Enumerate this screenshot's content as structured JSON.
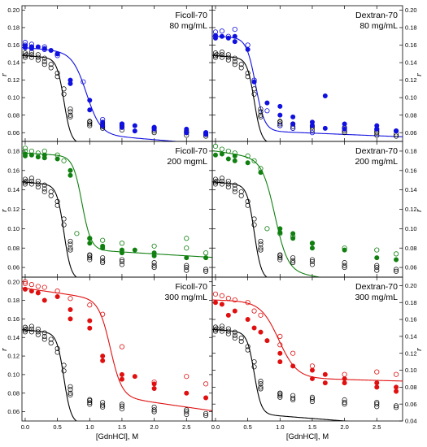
{
  "chart_data": {
    "type": "scatter",
    "xlabel": "[GdnHCl], M",
    "ylabel": "r",
    "xlim": [
      -0.05,
      2.9
    ],
    "xticks": [
      0.0,
      0.5,
      1.0,
      1.5,
      2.0,
      2.5
    ],
    "xtick_labels": [
      "0.0",
      "0.5",
      "1.0",
      "1.5",
      "2.0",
      "2.5"
    ],
    "grid": false,
    "colors": {
      "reference": "#000000",
      "blue": "#1010e0",
      "green": "#108010",
      "red": "#e01010"
    },
    "reference": {
      "curve": {
        "top": 0.148,
        "bottom": 0.052,
        "mid": 0.6,
        "width": 0.055,
        "slope": -0.006
      },
      "points": [
        [
          0.0,
          0.148
        ],
        [
          0.0,
          0.151
        ],
        [
          0.0,
          0.146
        ],
        [
          0.02,
          0.149
        ],
        [
          0.1,
          0.149
        ],
        [
          0.1,
          0.146
        ],
        [
          0.1,
          0.152
        ],
        [
          0.2,
          0.146
        ],
        [
          0.2,
          0.143
        ],
        [
          0.2,
          0.149
        ],
        [
          0.3,
          0.141
        ],
        [
          0.3,
          0.145
        ],
        [
          0.3,
          0.138
        ],
        [
          0.4,
          0.138
        ],
        [
          0.4,
          0.134
        ],
        [
          0.5,
          0.128
        ],
        [
          0.5,
          0.124
        ],
        [
          0.6,
          0.11
        ],
        [
          0.6,
          0.104
        ],
        [
          0.7,
          0.087
        ],
        [
          0.7,
          0.08
        ],
        [
          0.7,
          0.084
        ],
        [
          0.7,
          0.078
        ],
        [
          1.0,
          0.073
        ],
        [
          1.0,
          0.07
        ],
        [
          1.0,
          0.068
        ],
        [
          1.0,
          0.072
        ],
        [
          1.2,
          0.067
        ],
        [
          1.2,
          0.07
        ],
        [
          1.2,
          0.065
        ],
        [
          1.5,
          0.066
        ],
        [
          1.5,
          0.063
        ],
        [
          1.5,
          0.068
        ],
        [
          2.0,
          0.062
        ],
        [
          2.0,
          0.065
        ],
        [
          2.0,
          0.06
        ],
        [
          2.5,
          0.06
        ],
        [
          2.5,
          0.057
        ],
        [
          2.5,
          0.062
        ],
        [
          2.8,
          0.058
        ],
        [
          2.8,
          0.056
        ]
      ]
    },
    "panels": [
      {
        "name": "ficoll-70-80",
        "line1": "Ficoll-70",
        "line2": "80 mg/mL",
        "col": "left",
        "row": 0,
        "ylim": [
          0.05,
          0.205
        ],
        "yticks": [
          0.06,
          0.08,
          0.1,
          0.12,
          0.14,
          0.16,
          0.18,
          0.2
        ],
        "ytick_labels": [
          "0.06",
          "0.08",
          "0.10",
          "0.12",
          "0.14",
          "0.16",
          "0.18",
          "0.20"
        ],
        "color": "#1010e0",
        "curve": {
          "top": 0.157,
          "bottom": 0.064,
          "mid": 0.95,
          "width": 0.11,
          "slope": -0.006
        },
        "open": [
          [
            0.0,
            0.16
          ],
          [
            0.0,
            0.163
          ],
          [
            0.1,
            0.161
          ],
          [
            0.1,
            0.158
          ],
          [
            0.3,
            0.158
          ],
          [
            0.3,
            0.155
          ],
          [
            0.5,
            0.15
          ],
          [
            0.5,
            0.148
          ],
          [
            0.9,
            0.118
          ],
          [
            1.2,
            0.075
          ],
          [
            1.5,
            0.07
          ],
          [
            2.0,
            0.066
          ],
          [
            2.5,
            0.06
          ],
          [
            2.8,
            0.06
          ]
        ],
        "filled": [
          [
            0.0,
            0.157
          ],
          [
            0.0,
            0.159
          ],
          [
            0.1,
            0.158
          ],
          [
            0.1,
            0.156
          ],
          [
            0.2,
            0.158
          ],
          [
            0.3,
            0.156
          ],
          [
            0.4,
            0.154
          ],
          [
            0.5,
            0.15
          ],
          [
            0.7,
            0.12
          ],
          [
            0.7,
            0.116
          ],
          [
            1.0,
            0.097
          ],
          [
            1.0,
            0.086
          ],
          [
            1.2,
            0.072
          ],
          [
            1.2,
            0.068
          ],
          [
            1.5,
            0.066
          ],
          [
            1.5,
            0.07
          ],
          [
            1.7,
            0.068
          ],
          [
            1.7,
            0.062
          ],
          [
            2.0,
            0.066
          ],
          [
            2.0,
            0.064
          ],
          [
            2.5,
            0.064
          ],
          [
            2.5,
            0.06
          ],
          [
            2.8,
            0.06
          ],
          [
            2.8,
            0.058
          ]
        ]
      },
      {
        "name": "dextran-70-80",
        "line1": "Dextran-70",
        "line2": "80 mg/mL",
        "col": "right",
        "row": 0,
        "ylim": [
          0.05,
          0.205
        ],
        "yticks": [
          0.06,
          0.08,
          0.1,
          0.12,
          0.14,
          0.16,
          0.18,
          0.2
        ],
        "ytick_labels": [
          "0.06",
          "0.08",
          "0.10",
          "0.12",
          "0.14",
          "0.16",
          "0.18",
          "0.20"
        ],
        "color": "#1010e0",
        "curve": {
          "top": 0.17,
          "bottom": 0.064,
          "mid": 0.62,
          "width": 0.07,
          "slope": -0.003
        },
        "open": [
          [
            0.0,
            0.175
          ],
          [
            0.1,
            0.176
          ],
          [
            0.2,
            0.17
          ],
          [
            0.3,
            0.178
          ],
          [
            0.5,
            0.16
          ],
          [
            0.6,
            0.12
          ],
          [
            0.8,
            0.085
          ],
          [
            1.0,
            0.068
          ],
          [
            1.2,
            0.065
          ],
          [
            1.5,
            0.06
          ],
          [
            2.0,
            0.066
          ],
          [
            2.5,
            0.064
          ],
          [
            2.8,
            0.062
          ]
        ],
        "filled": [
          [
            0.0,
            0.168
          ],
          [
            0.0,
            0.171
          ],
          [
            0.1,
            0.17
          ],
          [
            0.2,
            0.168
          ],
          [
            0.3,
            0.164
          ],
          [
            0.3,
            0.17
          ],
          [
            0.5,
            0.155
          ],
          [
            0.6,
            0.118
          ],
          [
            0.8,
            0.094
          ],
          [
            1.0,
            0.09
          ],
          [
            1.0,
            0.08
          ],
          [
            1.2,
            0.078
          ],
          [
            1.2,
            0.07
          ],
          [
            1.5,
            0.072
          ],
          [
            1.5,
            0.068
          ],
          [
            1.7,
            0.102
          ],
          [
            1.7,
            0.065
          ],
          [
            2.0,
            0.07
          ],
          [
            2.0,
            0.064
          ],
          [
            2.5,
            0.064
          ],
          [
            2.5,
            0.068
          ],
          [
            2.8,
            0.062
          ]
        ]
      },
      {
        "name": "ficoll-70-200",
        "line1": "Ficoll-70",
        "line2": "200 mgmL",
        "col": "left",
        "row": 1,
        "ylim": [
          0.05,
          0.19
        ],
        "yticks": [
          0.06,
          0.08,
          0.1,
          0.12,
          0.14,
          0.16,
          0.18
        ],
        "ytick_labels": [
          "0.06",
          "0.08",
          "0.10",
          "0.12",
          "0.14",
          "0.16",
          "0.18"
        ],
        "color": "#108010",
        "curve": {
          "top": 0.178,
          "bottom": 0.082,
          "mid": 0.88,
          "width": 0.07,
          "slope": -0.004
        },
        "open": [
          [
            0.0,
            0.18
          ],
          [
            0.0,
            0.183
          ],
          [
            0.1,
            0.18
          ],
          [
            0.2,
            0.178
          ],
          [
            0.3,
            0.18
          ],
          [
            0.5,
            0.176
          ],
          [
            0.6,
            0.17
          ],
          [
            0.8,
            0.095
          ],
          [
            1.0,
            0.09
          ],
          [
            1.2,
            0.088
          ],
          [
            1.5,
            0.085
          ],
          [
            2.0,
            0.082
          ],
          [
            2.5,
            0.08
          ],
          [
            2.5,
            0.09
          ],
          [
            2.8,
            0.075
          ]
        ],
        "filled": [
          [
            0.0,
            0.177
          ],
          [
            0.0,
            0.175
          ],
          [
            0.1,
            0.176
          ],
          [
            0.2,
            0.174
          ],
          [
            0.3,
            0.176
          ],
          [
            0.3,
            0.173
          ],
          [
            0.5,
            0.172
          ],
          [
            0.7,
            0.16
          ],
          [
            0.7,
            0.155
          ],
          [
            1.0,
            0.09
          ],
          [
            1.0,
            0.085
          ],
          [
            1.2,
            0.082
          ],
          [
            1.2,
            0.08
          ],
          [
            1.5,
            0.078
          ],
          [
            1.5,
            0.075
          ],
          [
            1.7,
            0.078
          ],
          [
            2.0,
            0.075
          ],
          [
            2.0,
            0.072
          ],
          [
            2.5,
            0.07
          ],
          [
            2.8,
            0.07
          ]
        ]
      },
      {
        "name": "dextran-70-200",
        "line1": "Dextran-70",
        "line2": "200 mg/mL",
        "col": "right",
        "row": 1,
        "ylim": [
          0.05,
          0.19
        ],
        "yticks": [
          0.06,
          0.08,
          0.1,
          0.12,
          0.14,
          0.16,
          0.18
        ],
        "ytick_labels": [
          "0.06",
          "0.08",
          "0.10",
          "0.12",
          "0.14",
          "0.16",
          "0.18"
        ],
        "color": "#108010",
        "curve": {
          "top": 0.18,
          "bottom": 0.066,
          "mid": 0.92,
          "width": 0.1,
          "slope": -0.01
        },
        "open": [
          [
            0.0,
            0.185
          ],
          [
            0.1,
            0.182
          ],
          [
            0.2,
            0.18
          ],
          [
            0.3,
            0.178
          ],
          [
            0.5,
            0.175
          ],
          [
            0.6,
            0.17
          ],
          [
            0.7,
            0.162
          ],
          [
            0.8,
            0.1
          ],
          [
            1.0,
            0.095
          ],
          [
            1.2,
            0.092
          ],
          [
            1.5,
            0.085
          ],
          [
            2.0,
            0.08
          ],
          [
            2.5,
            0.078
          ],
          [
            2.8,
            0.074
          ]
        ],
        "filled": [
          [
            0.0,
            0.176
          ],
          [
            0.1,
            0.177
          ],
          [
            0.2,
            0.172
          ],
          [
            0.3,
            0.175
          ],
          [
            0.3,
            0.17
          ],
          [
            0.5,
            0.168
          ],
          [
            0.7,
            0.158
          ],
          [
            1.0,
            0.1
          ],
          [
            1.0,
            0.096
          ],
          [
            1.2,
            0.095
          ],
          [
            1.2,
            0.09
          ],
          [
            1.5,
            0.085
          ],
          [
            1.5,
            0.08
          ],
          [
            2.0,
            0.078
          ],
          [
            2.5,
            0.07
          ],
          [
            2.8,
            0.068
          ]
        ]
      },
      {
        "name": "ficoll-70-300",
        "line1": "Ficoll-70",
        "line2": "300 mg/mL",
        "col": "left",
        "row": 2,
        "ylim": [
          0.05,
          0.205
        ],
        "yticks": [
          0.06,
          0.08,
          0.1,
          0.12,
          0.14,
          0.16,
          0.18,
          0.2
        ],
        "ytick_labels": [
          "0.06",
          "0.08",
          "0.10",
          "0.12",
          "0.14",
          "0.16",
          "0.18",
          "0.20"
        ],
        "color": "#e01010",
        "curve": {
          "top": 0.193,
          "bottom": 0.09,
          "mid": 1.32,
          "width": 0.09,
          "slope": -0.01
        },
        "open": [
          [
            0.0,
            0.198
          ],
          [
            0.0,
            0.2
          ],
          [
            0.1,
            0.197
          ],
          [
            0.2,
            0.195
          ],
          [
            0.3,
            0.194
          ],
          [
            0.5,
            0.19
          ],
          [
            0.7,
            0.182
          ],
          [
            1.0,
            0.175
          ],
          [
            1.2,
            0.165
          ],
          [
            1.5,
            0.13
          ],
          [
            2.0,
            0.092
          ],
          [
            2.5,
            0.098
          ],
          [
            2.8,
            0.09
          ]
        ],
        "filled": [
          [
            0.0,
            0.192
          ],
          [
            0.1,
            0.19
          ],
          [
            0.2,
            0.188
          ],
          [
            0.3,
            0.18
          ],
          [
            0.5,
            0.184
          ],
          [
            0.7,
            0.17
          ],
          [
            0.7,
            0.16
          ],
          [
            1.0,
            0.158
          ],
          [
            1.0,
            0.15
          ],
          [
            1.2,
            0.12
          ],
          [
            1.2,
            0.115
          ],
          [
            1.5,
            0.1
          ],
          [
            1.5,
            0.095
          ],
          [
            1.7,
            0.098
          ],
          [
            2.0,
            0.09
          ],
          [
            2.0,
            0.085
          ],
          [
            2.5,
            0.08
          ],
          [
            2.8,
            0.075
          ]
        ]
      },
      {
        "name": "dextran-70-300",
        "line1": "Dextran-70",
        "line2": "300 mg/mL",
        "col": "right",
        "row": 2,
        "ylim": [
          0.04,
          0.21
        ],
        "yticks": [
          0.04,
          0.06,
          0.08,
          0.1,
          0.12,
          0.14,
          0.16,
          0.18,
          0.2
        ],
        "ytick_labels": [
          "0.04",
          "0.06",
          "0.08",
          "0.10",
          "0.12",
          "0.14",
          "0.16",
          "0.18",
          "0.20"
        ],
        "color": "#e01010",
        "curve": {
          "top": 0.183,
          "bottom": 0.093,
          "mid": 0.98,
          "width": 0.14,
          "slope": -0.002
        },
        "open": [
          [
            0.0,
            0.19
          ],
          [
            0.1,
            0.188
          ],
          [
            0.2,
            0.185
          ],
          [
            0.3,
            0.183
          ],
          [
            0.5,
            0.18
          ],
          [
            0.6,
            0.17
          ],
          [
            0.7,
            0.165
          ],
          [
            1.0,
            0.14
          ],
          [
            1.0,
            0.13
          ],
          [
            1.2,
            0.12
          ],
          [
            1.5,
            0.105
          ],
          [
            2.0,
            0.095
          ],
          [
            2.5,
            0.098
          ],
          [
            2.8,
            0.095
          ]
        ],
        "filled": [
          [
            0.0,
            0.18
          ],
          [
            0.1,
            0.178
          ],
          [
            0.2,
            0.165
          ],
          [
            0.3,
            0.17
          ],
          [
            0.5,
            0.16
          ],
          [
            0.6,
            0.15
          ],
          [
            0.7,
            0.145
          ],
          [
            0.8,
            0.135
          ],
          [
            1.0,
            0.12
          ],
          [
            1.0,
            0.11
          ],
          [
            1.2,
            0.105
          ],
          [
            1.5,
            0.1
          ],
          [
            1.5,
            0.09
          ],
          [
            1.7,
            0.095
          ],
          [
            1.7,
            0.085
          ],
          [
            2.0,
            0.09
          ],
          [
            2.0,
            0.085
          ],
          [
            2.5,
            0.085
          ],
          [
            2.5,
            0.08
          ],
          [
            2.8,
            0.08
          ],
          [
            2.8,
            0.075
          ]
        ]
      }
    ]
  }
}
